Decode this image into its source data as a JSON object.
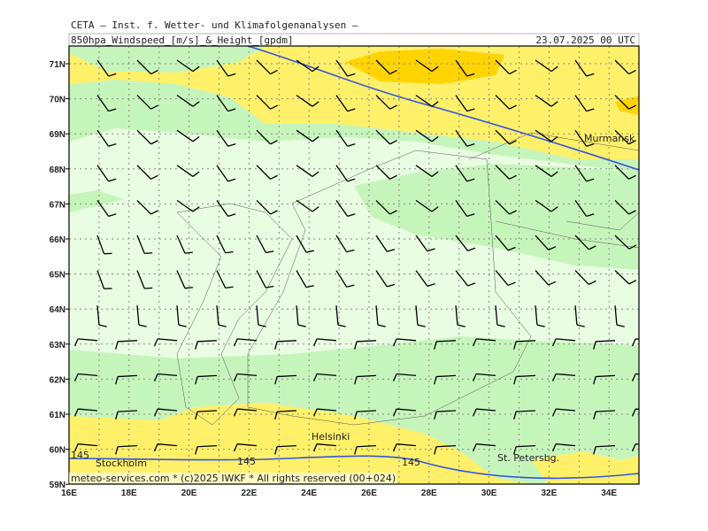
{
  "header": {
    "line1": "CETA — Inst. f. Wetter- und Klimafolgenanalysen —",
    "title": "850hpa_Windspeed_[m/s]_&_Height_[gpdm]",
    "date": "23.07.2025 00 UTC"
  },
  "lat_labels": [
    "71N",
    "70N",
    "69N",
    "68N",
    "67N",
    "66N",
    "65N",
    "64N",
    "63N",
    "62N",
    "61N",
    "60N",
    "59N"
  ],
  "lon_labels": [
    "16E",
    "18E",
    "20E",
    "22E",
    "24E",
    "26E",
    "28E",
    "30E",
    "32E",
    "34E"
  ],
  "places": [
    "Murmansk",
    "Helsinki",
    "Stockholm",
    "St. Petersbg."
  ],
  "contour_labels": [
    "145",
    "145",
    "145"
  ],
  "footer": "meteo-services.com * (c)2025 IWKF * All rights reserved (00+024)"
}
